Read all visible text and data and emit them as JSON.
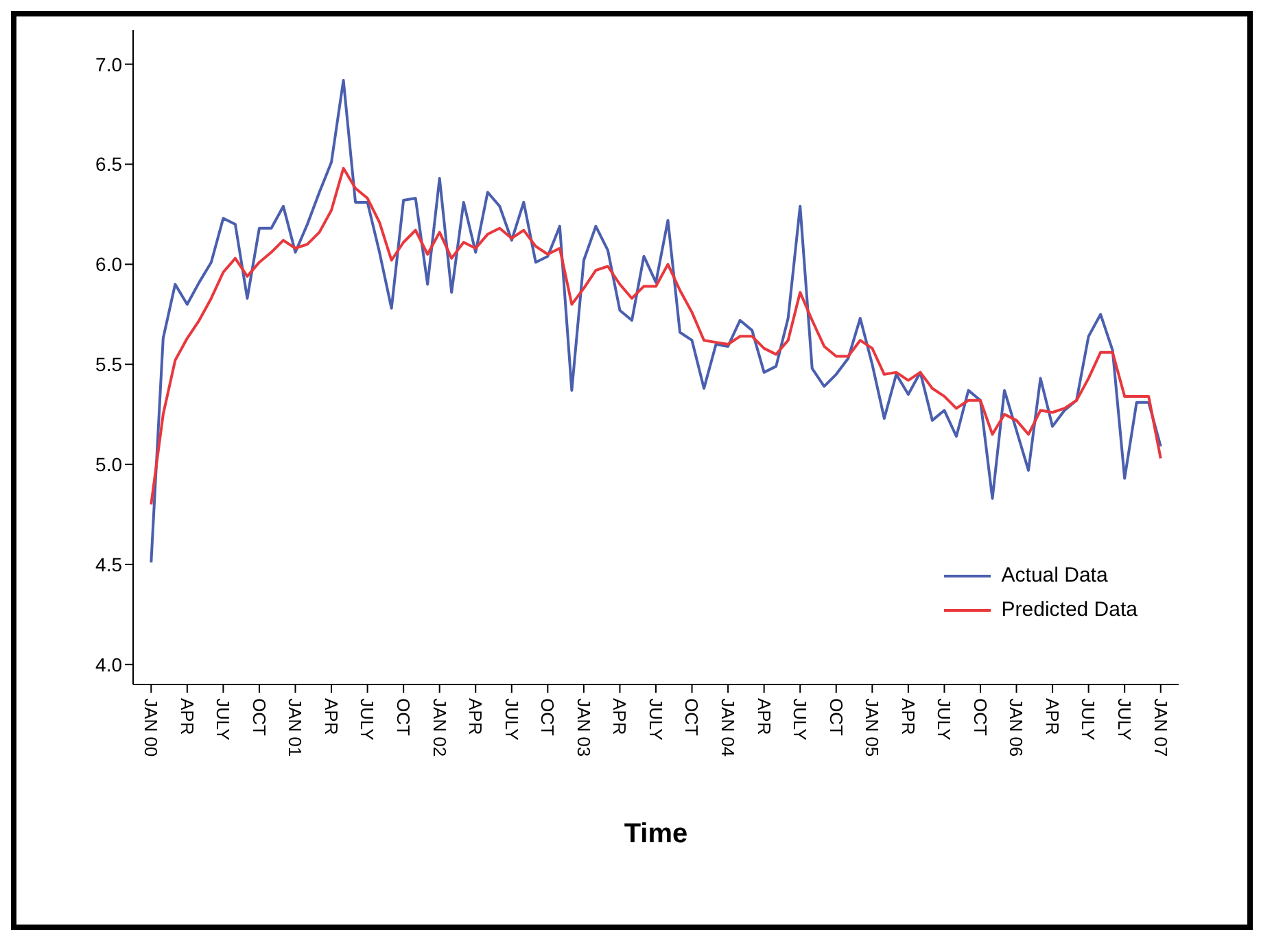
{
  "chart_data": {
    "type": "line",
    "xlabel": "Time",
    "categories": [
      "JAN 00",
      null,
      null,
      "APR",
      null,
      null,
      "JULY",
      null,
      null,
      "OCT",
      null,
      null,
      "JAN 01",
      null,
      null,
      "APR",
      null,
      null,
      "JULY",
      null,
      null,
      "OCT",
      null,
      null,
      "JAN 02",
      null,
      null,
      "APR",
      null,
      null,
      "JULY",
      null,
      null,
      "OCT",
      null,
      null,
      "JAN 03",
      null,
      null,
      "APR",
      null,
      null,
      "JULY",
      null,
      null,
      "OCT",
      null,
      null,
      "JAN 04",
      null,
      null,
      "APR",
      null,
      null,
      "JULY",
      null,
      null,
      "OCT",
      null,
      null,
      "JAN 05",
      null,
      null,
      "APR",
      null,
      null,
      "JULY",
      null,
      null,
      "OCT",
      null,
      null,
      "JAN 06",
      null,
      null,
      "APR",
      null,
      null,
      "JULY",
      null,
      null,
      "JULY",
      null,
      null,
      "JAN 07"
    ],
    "series": [
      {
        "name": "Actual Data",
        "color": "#4a5fae",
        "values": [
          4.51,
          5.63,
          5.9,
          5.8,
          5.91,
          6.01,
          6.23,
          6.2,
          5.83,
          6.18,
          6.18,
          6.29,
          6.06,
          6.2,
          6.36,
          6.51,
          6.92,
          6.31,
          6.31,
          6.06,
          5.78,
          6.32,
          6.33,
          5.9,
          6.43,
          5.86,
          6.31,
          6.06,
          6.36,
          6.29,
          6.12,
          6.31,
          6.01,
          6.04,
          6.19,
          5.37,
          6.02,
          6.19,
          6.07,
          5.77,
          5.72,
          6.04,
          5.91,
          6.22,
          5.66,
          5.62,
          5.38,
          5.6,
          5.59,
          5.72,
          5.67,
          5.46,
          5.49,
          5.73,
          6.29,
          5.48,
          5.39,
          5.45,
          5.53,
          5.73,
          5.5,
          5.23,
          5.45,
          5.35,
          5.46,
          5.22,
          5.27,
          5.14,
          5.37,
          5.32,
          4.83,
          5.37,
          5.17,
          4.97,
          5.43,
          5.19,
          5.27,
          5.32,
          5.64,
          5.75,
          5.57,
          4.93,
          5.31,
          5.31,
          5.09
        ]
      },
      {
        "name": "Predicted Data",
        "color": "#e8383d",
        "values": [
          4.8,
          5.25,
          5.52,
          5.63,
          5.72,
          5.83,
          5.96,
          6.03,
          5.94,
          6.01,
          6.06,
          6.12,
          6.08,
          6.1,
          6.16,
          6.27,
          6.48,
          6.38,
          6.33,
          6.21,
          6.02,
          6.11,
          6.17,
          6.05,
          6.16,
          6.03,
          6.11,
          6.08,
          6.15,
          6.18,
          6.13,
          6.17,
          6.09,
          6.05,
          6.08,
          5.8,
          5.88,
          5.97,
          5.99,
          5.9,
          5.83,
          5.89,
          5.89,
          6.0,
          5.87,
          5.76,
          5.62,
          5.61,
          5.6,
          5.64,
          5.64,
          5.58,
          5.55,
          5.62,
          5.86,
          5.72,
          5.59,
          5.54,
          5.54,
          5.62,
          5.58,
          5.45,
          5.46,
          5.42,
          5.46,
          5.38,
          5.34,
          5.28,
          5.32,
          5.32,
          5.15,
          5.25,
          5.22,
          5.15,
          5.27,
          5.26,
          5.28,
          5.32,
          5.43,
          5.56,
          5.56,
          5.34,
          5.34,
          5.34,
          5.03
        ]
      }
    ],
    "ylim": [
      3.9,
      7.17
    ],
    "yticks": [
      {
        "value": 4,
        "label": "4.0"
      },
      {
        "value": 4.5,
        "label": "4.5"
      },
      {
        "value": 5,
        "label": "5.0"
      },
      {
        "value": 5.5,
        "label": "5.5"
      },
      {
        "value": 6,
        "label": "6.0"
      },
      {
        "value": 6.5,
        "label": "6.5"
      },
      {
        "value": 7,
        "label": "7.0"
      }
    ],
    "legend": "bottom right",
    "grid": false,
    "marker": "none",
    "line_style": "solid"
  }
}
